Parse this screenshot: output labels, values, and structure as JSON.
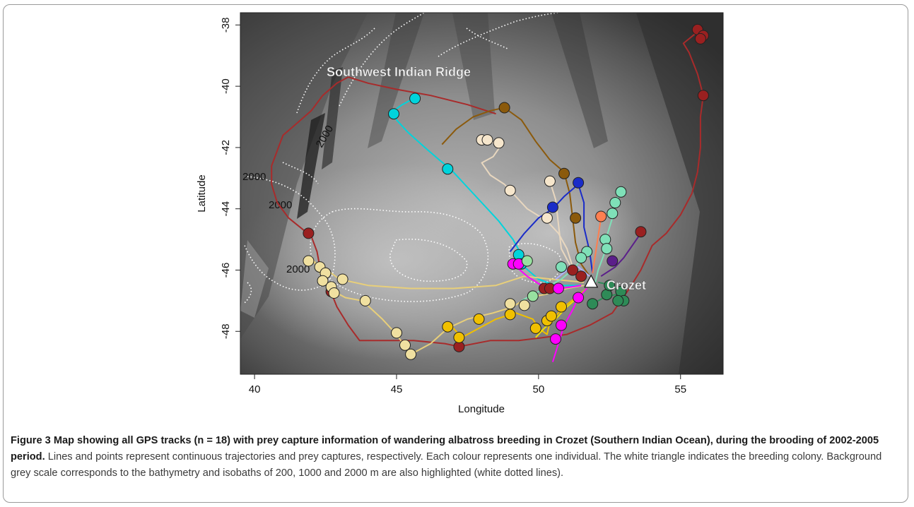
{
  "map": {
    "labels": {
      "ridge": "Southwest Indian Ridge",
      "colony": "Crozet",
      "isobath_2000": "2000"
    },
    "x_axis": {
      "label": "Longitude",
      "ticks": [
        40,
        45,
        50,
        55
      ],
      "range": [
        39.5,
        56.5
      ]
    },
    "y_axis": {
      "label": "Latitude",
      "ticks": [
        -38,
        -40,
        -42,
        -44,
        -46,
        -48
      ],
      "range": [
        -49.4,
        -37.6
      ]
    },
    "colony_location": {
      "lon": 51.85,
      "lat": -46.4
    }
  },
  "tracks": [
    {
      "color": "#a82b2b",
      "points": [
        [
          43.3,
          -39.7
        ],
        [
          42.9,
          -39.9
        ],
        [
          42.4,
          -40.3
        ],
        [
          42.0,
          -40.8
        ],
        [
          41.5,
          -41.2
        ],
        [
          41.0,
          -41.6
        ],
        [
          40.8,
          -42.1
        ],
        [
          40.6,
          -42.6
        ],
        [
          40.6,
          -43.2
        ],
        [
          40.8,
          -43.8
        ],
        [
          41.2,
          -44.3
        ],
        [
          41.6,
          -44.6
        ],
        [
          42.0,
          -44.9
        ],
        [
          42.2,
          -45.4
        ],
        [
          42.3,
          -45.9
        ],
        [
          42.6,
          -46.5
        ],
        [
          42.9,
          -47.2
        ],
        [
          43.3,
          -47.8
        ],
        [
          43.7,
          -48.3
        ],
        [
          44.6,
          -48.3
        ],
        [
          45.6,
          -48.3
        ],
        [
          46.7,
          -48.4
        ],
        [
          47.2,
          -48.5
        ],
        [
          48.3,
          -48.3
        ],
        [
          49.3,
          -48.3
        ],
        [
          50.2,
          -48.2
        ],
        [
          51.0,
          -48.1
        ],
        [
          51.8,
          -47.8
        ],
        [
          52.6,
          -47.4
        ],
        [
          53.2,
          -46.6
        ],
        [
          53.6,
          -46.0
        ],
        [
          54.0,
          -45.2
        ],
        [
          54.5,
          -44.8
        ],
        [
          55.0,
          -44.2
        ],
        [
          55.4,
          -43.5
        ],
        [
          55.6,
          -42.8
        ],
        [
          55.7,
          -42.0
        ],
        [
          55.7,
          -41.0
        ],
        [
          55.8,
          -40.3
        ],
        [
          55.6,
          -39.6
        ],
        [
          55.3,
          -38.9
        ],
        [
          55.1,
          -38.6
        ],
        [
          55.5,
          -38.3
        ],
        [
          55.7,
          -38.2
        ]
      ]
    },
    {
      "color": "#a82b2b",
      "points": [
        [
          43.3,
          -39.7
        ],
        [
          44.0,
          -39.9
        ],
        [
          45.0,
          -40.1
        ],
        [
          46.2,
          -40.3
        ],
        [
          47.5,
          -40.6
        ],
        [
          48.5,
          -40.9
        ]
      ]
    },
    {
      "color": "#e8d7bf",
      "points": [
        [
          47.9,
          -41.8
        ],
        [
          48.2,
          -41.8
        ],
        [
          48.7,
          -41.9
        ],
        [
          48.4,
          -42.3
        ],
        [
          48.0,
          -42.5
        ],
        [
          48.3,
          -42.9
        ],
        [
          48.8,
          -43.2
        ],
        [
          49.1,
          -43.5
        ],
        [
          49.6,
          -44.0
        ],
        [
          50.3,
          -44.4
        ],
        [
          50.7,
          -44.8
        ],
        [
          51.0,
          -45.3
        ],
        [
          51.2,
          -45.9
        ],
        [
          51.5,
          -46.3
        ]
      ]
    },
    {
      "color": "#e8d7bf",
      "points": [
        [
          50.4,
          -43.1
        ],
        [
          50.6,
          -43.7
        ],
        [
          50.7,
          -44.5
        ],
        [
          50.8,
          -45.3
        ],
        [
          51.2,
          -46.0
        ]
      ]
    },
    {
      "color": "#00d4dc",
      "points": [
        [
          45.6,
          -40.4
        ],
        [
          45.2,
          -40.6
        ],
        [
          44.9,
          -40.8
        ],
        [
          45.0,
          -41.1
        ],
        [
          45.4,
          -41.5
        ],
        [
          46.0,
          -42.0
        ],
        [
          46.5,
          -42.4
        ],
        [
          46.9,
          -42.7
        ],
        [
          47.4,
          -43.2
        ],
        [
          48.0,
          -43.8
        ],
        [
          48.6,
          -44.4
        ],
        [
          49.1,
          -45.0
        ],
        [
          49.4,
          -45.5
        ],
        [
          49.5,
          -45.9
        ],
        [
          50.0,
          -46.3
        ],
        [
          50.6,
          -46.5
        ],
        [
          51.5,
          -46.5
        ]
      ]
    },
    {
      "color": "#8b5a0c",
      "points": [
        [
          46.6,
          -41.9
        ],
        [
          47.1,
          -41.4
        ],
        [
          47.7,
          -41.0
        ],
        [
          48.3,
          -40.8
        ],
        [
          48.8,
          -40.7
        ],
        [
          49.4,
          -41.1
        ],
        [
          49.9,
          -41.8
        ],
        [
          50.4,
          -42.4
        ],
        [
          50.9,
          -42.8
        ],
        [
          51.1,
          -43.5
        ],
        [
          51.2,
          -44.3
        ],
        [
          51.3,
          -45.1
        ],
        [
          51.5,
          -45.8
        ],
        [
          51.8,
          -46.2
        ]
      ]
    },
    {
      "color": "#1a2cc8",
      "points": [
        [
          49.0,
          -45.4
        ],
        [
          49.5,
          -44.8
        ],
        [
          50.0,
          -44.3
        ],
        [
          50.5,
          -44.0
        ],
        [
          50.9,
          -43.6
        ],
        [
          51.4,
          -43.2
        ],
        [
          51.6,
          -43.8
        ],
        [
          51.6,
          -44.6
        ],
        [
          51.8,
          -45.4
        ],
        [
          51.9,
          -46.1
        ]
      ]
    },
    {
      "color": "#e8cf7a",
      "points": [
        [
          42.0,
          -45.7
        ],
        [
          42.4,
          -45.9
        ],
        [
          43.0,
          -46.3
        ],
        [
          44.0,
          -46.5
        ],
        [
          45.5,
          -46.6
        ],
        [
          47.0,
          -46.6
        ],
        [
          48.5,
          -46.5
        ],
        [
          49.5,
          -46.2
        ],
        [
          50.5,
          -46.3
        ],
        [
          51.6,
          -46.4
        ]
      ]
    },
    {
      "color": "#e8cf7a",
      "points": [
        [
          42.1,
          -45.7
        ],
        [
          42.3,
          -46.1
        ],
        [
          42.6,
          -46.6
        ],
        [
          43.2,
          -46.9
        ],
        [
          43.8,
          -47.0
        ],
        [
          44.5,
          -47.6
        ],
        [
          45.0,
          -48.1
        ],
        [
          45.3,
          -48.5
        ],
        [
          45.6,
          -48.7
        ],
        [
          46.2,
          -48.4
        ],
        [
          46.8,
          -47.9
        ],
        [
          47.5,
          -47.6
        ],
        [
          48.4,
          -47.4
        ],
        [
          49.1,
          -47.2
        ],
        [
          49.6,
          -46.9
        ],
        [
          50.2,
          -46.8
        ],
        [
          51.0,
          -46.6
        ],
        [
          51.6,
          -46.5
        ]
      ]
    },
    {
      "color": "#f0c000",
      "points": [
        [
          46.9,
          -47.8
        ],
        [
          47.3,
          -48.2
        ],
        [
          47.9,
          -47.9
        ],
        [
          48.5,
          -47.6
        ],
        [
          49.2,
          -47.4
        ],
        [
          49.8,
          -47.6
        ],
        [
          50.0,
          -47.9
        ],
        [
          50.3,
          -48.1
        ],
        [
          50.4,
          -47.7
        ],
        [
          50.6,
          -47.5
        ],
        [
          50.9,
          -47.2
        ],
        [
          51.3,
          -46.9
        ],
        [
          51.7,
          -46.6
        ]
      ]
    },
    {
      "color": "#f0e000",
      "points": [
        [
          49.9,
          -48.2
        ],
        [
          50.2,
          -47.9
        ],
        [
          50.6,
          -47.6
        ],
        [
          51.0,
          -47.2
        ],
        [
          51.5,
          -46.8
        ]
      ]
    },
    {
      "color": "#ff00ff",
      "points": [
        [
          50.5,
          -49.0
        ],
        [
          50.7,
          -48.4
        ],
        [
          50.9,
          -47.8
        ],
        [
          51.2,
          -47.3
        ],
        [
          51.4,
          -46.9
        ],
        [
          51.7,
          -46.6
        ]
      ]
    },
    {
      "color": "#ff00ff",
      "points": [
        [
          49.1,
          -45.8
        ],
        [
          49.6,
          -46.2
        ],
        [
          50.1,
          -46.5
        ],
        [
          50.8,
          -46.6
        ],
        [
          51.5,
          -46.5
        ]
      ]
    },
    {
      "color": "#7fe0b8",
      "points": [
        [
          52.9,
          -43.4
        ],
        [
          52.7,
          -43.8
        ],
        [
          52.6,
          -44.3
        ],
        [
          52.4,
          -44.9
        ],
        [
          52.3,
          -45.5
        ],
        [
          52.1,
          -46.0
        ],
        [
          52.0,
          -46.4
        ]
      ]
    },
    {
      "color": "#7fe0b8",
      "points": [
        [
          49.4,
          -47.0
        ],
        [
          50.2,
          -46.6
        ],
        [
          50.8,
          -46.3
        ],
        [
          51.3,
          -45.9
        ],
        [
          51.6,
          -45.5
        ]
      ]
    },
    {
      "color": "#ff7f50",
      "points": [
        [
          52.2,
          -44.3
        ],
        [
          52.1,
          -44.9
        ],
        [
          52.0,
          -45.5
        ],
        [
          51.9,
          -46.1
        ]
      ]
    },
    {
      "color": "#5b1f8a",
      "points": [
        [
          53.6,
          -44.8
        ],
        [
          53.3,
          -45.2
        ],
        [
          53.0,
          -45.6
        ],
        [
          52.7,
          -45.9
        ],
        [
          52.2,
          -46.2
        ]
      ]
    },
    {
      "color": "#2e8b57",
      "points": [
        [
          51.9,
          -47.1
        ],
        [
          52.3,
          -46.9
        ],
        [
          52.7,
          -46.8
        ],
        [
          53.1,
          -47.0
        ],
        [
          52.6,
          -46.5
        ],
        [
          52.1,
          -46.4
        ]
      ]
    },
    {
      "color": "#b0b0ff",
      "points": [
        [
          50.6,
          -46.3
        ],
        [
          51.0,
          -46.0
        ],
        [
          51.4,
          -45.9
        ],
        [
          51.8,
          -46.2
        ]
      ]
    }
  ],
  "captures": [
    {
      "color": "#9a2020",
      "points": [
        [
          55.6,
          -38.15
        ],
        [
          55.8,
          -38.35
        ],
        [
          55.7,
          -38.45
        ],
        [
          55.8,
          -40.3
        ],
        [
          53.6,
          -44.75
        ],
        [
          41.9,
          -44.8
        ],
        [
          42.7,
          -46.7
        ],
        [
          47.2,
          -48.5
        ],
        [
          50.2,
          -46.6
        ],
        [
          50.4,
          -46.6
        ],
        [
          51.2,
          -46.0
        ],
        [
          51.5,
          -46.2
        ]
      ]
    },
    {
      "color": "#f6e6cc",
      "points": [
        [
          48.0,
          -41.75
        ],
        [
          48.2,
          -41.75
        ],
        [
          48.6,
          -41.85
        ],
        [
          49.0,
          -43.4
        ],
        [
          50.3,
          -44.3
        ],
        [
          50.4,
          -43.1
        ]
      ]
    },
    {
      "color": "#00d4dc",
      "points": [
        [
          45.65,
          -40.4
        ],
        [
          44.9,
          -40.9
        ],
        [
          46.8,
          -42.7
        ],
        [
          49.3,
          -45.5
        ],
        [
          49.4,
          -45.8
        ]
      ]
    },
    {
      "color": "#8b5a0c",
      "points": [
        [
          48.8,
          -40.7
        ],
        [
          50.9,
          -42.85
        ],
        [
          51.3,
          -44.3
        ]
      ]
    },
    {
      "color": "#1a2cc8",
      "points": [
        [
          51.4,
          -43.15
        ],
        [
          50.5,
          -43.95
        ]
      ]
    },
    {
      "color": "#f0e0a0",
      "points": [
        [
          41.9,
          -45.7
        ],
        [
          42.3,
          -45.9
        ],
        [
          42.5,
          -46.1
        ],
        [
          42.4,
          -46.35
        ],
        [
          42.7,
          -46.55
        ],
        [
          42.8,
          -46.75
        ],
        [
          43.1,
          -46.3
        ],
        [
          43.9,
          -47.0
        ],
        [
          45.0,
          -48.05
        ],
        [
          45.3,
          -48.45
        ],
        [
          45.5,
          -48.75
        ],
        [
          49.0,
          -47.1
        ],
        [
          49.5,
          -47.15
        ]
      ]
    },
    {
      "color": "#f0c000",
      "points": [
        [
          46.8,
          -47.85
        ],
        [
          47.2,
          -48.2
        ],
        [
          47.9,
          -47.6
        ],
        [
          49.0,
          -47.45
        ],
        [
          49.9,
          -47.9
        ],
        [
          50.3,
          -47.65
        ],
        [
          50.45,
          -47.5
        ],
        [
          50.8,
          -47.2
        ]
      ]
    },
    {
      "color": "#ff00ff",
      "points": [
        [
          49.1,
          -45.8
        ],
        [
          49.3,
          -45.8
        ],
        [
          50.8,
          -47.8
        ],
        [
          50.6,
          -48.25
        ],
        [
          51.4,
          -46.9
        ],
        [
          50.7,
          -46.6
        ]
      ]
    },
    {
      "color": "#7fe0b8",
      "points": [
        [
          52.9,
          -43.45
        ],
        [
          52.7,
          -43.8
        ],
        [
          52.6,
          -44.15
        ],
        [
          52.35,
          -45.0
        ],
        [
          52.4,
          -45.3
        ],
        [
          51.7,
          -45.4
        ],
        [
          51.5,
          -45.6
        ],
        [
          50.8,
          -45.9
        ]
      ]
    },
    {
      "color": "#98e0a0",
      "points": [
        [
          49.6,
          -45.7
        ],
        [
          49.8,
          -46.85
        ]
      ]
    },
    {
      "color": "#ff7f50",
      "points": [
        [
          52.2,
          -44.25
        ]
      ]
    },
    {
      "color": "#5b1f8a",
      "points": [
        [
          52.6,
          -45.7
        ]
      ]
    },
    {
      "color": "#2e8b57",
      "points": [
        [
          51.9,
          -47.1
        ],
        [
          52.9,
          -46.7
        ],
        [
          53.0,
          -47.0
        ],
        [
          52.8,
          -47.0
        ],
        [
          52.4,
          -46.8
        ],
        [
          52.5,
          -46.5
        ]
      ]
    }
  ],
  "caption": {
    "title": "Figure 3 Map showing all GPS tracks (n = 18) with prey capture information of wandering albatross breeding in Crozet (Southern Indian Ocean), during the brooding of 2002-2005 period.",
    "body": "Lines and points represent continuous trajectories and prey captures, respectively. Each colour represents one individual. The white triangle indicates the breeding colony. Background grey scale corresponds to the bathymetry and isobaths of 200, 1000 and 2000 m are also highlighted (white dotted lines)."
  }
}
